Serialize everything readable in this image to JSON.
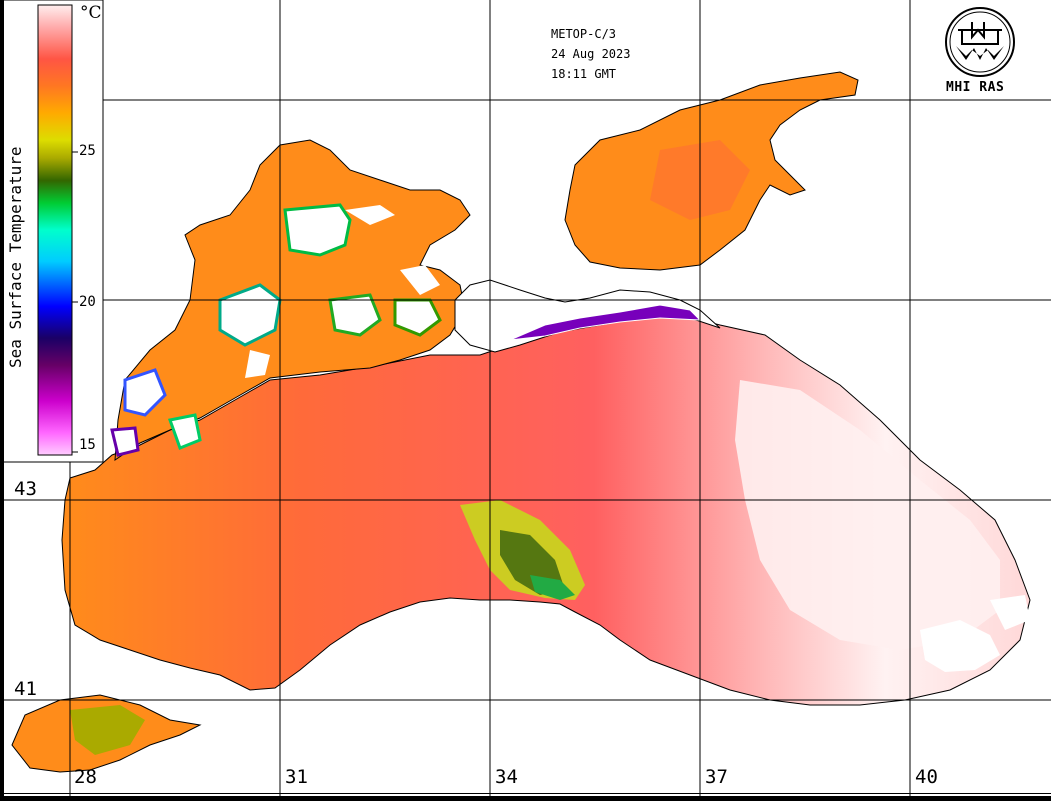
{
  "header": {
    "satellite": "METOP-C/3",
    "date": "24 Aug 2023",
    "time": "18:11 GMT"
  },
  "logo": {
    "text": "MHI RAS",
    "icon": "mhi-ras-emblem-icon"
  },
  "legend": {
    "title": "Sea Surface Temperature",
    "unit": "°C",
    "ticks": [
      "25",
      "20",
      "15"
    ],
    "range": [
      15,
      30
    ],
    "colors": [
      "#ff99ff",
      "#cc00cc",
      "#660066",
      "#0000ff",
      "#00ccff",
      "#00ff99",
      "#00cc00",
      "#336600",
      "#cccc00",
      "#ffaa00",
      "#ff7722",
      "#ff5555",
      "#ffeeee"
    ]
  },
  "axes": {
    "longitudes": [
      "28",
      "31",
      "34",
      "37",
      "40"
    ],
    "latitudes": [
      "43",
      "41"
    ]
  },
  "colors": {
    "sea_orange": "#ff8c1a",
    "sea_coral": "#ff5f5f",
    "sea_pink": "#ffb3b3",
    "sea_white": "#fff0f0",
    "cloud": "#ffffff",
    "coast": "#000000"
  }
}
